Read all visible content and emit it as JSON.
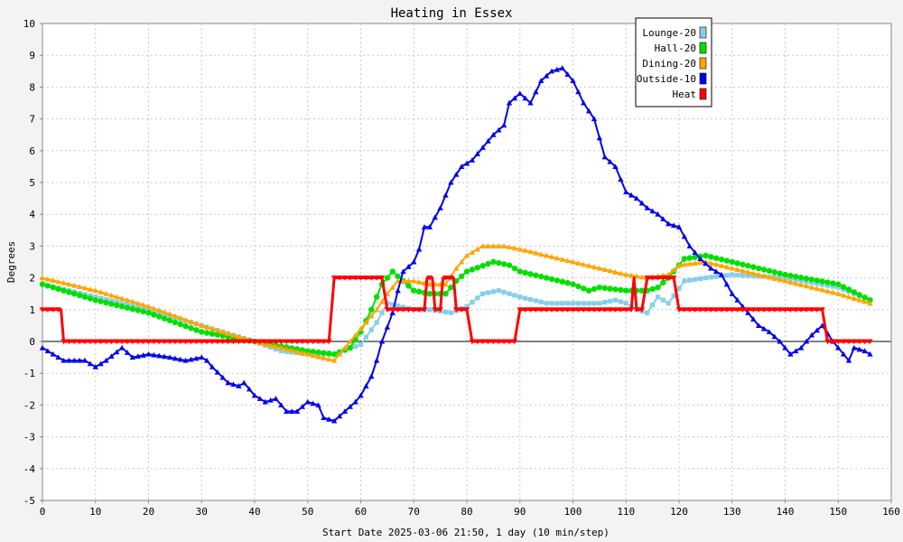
{
  "chart_data": {
    "type": "line",
    "title": "Heating in Essex",
    "xlabel": "Start Date 2025-03-06 21:50, 1 day (10 min/step)",
    "ylabel": "Degrees",
    "xlim": [
      0,
      160
    ],
    "ylim": [
      -5,
      10
    ],
    "x_ticks": [
      0,
      10,
      20,
      30,
      40,
      50,
      60,
      70,
      80,
      90,
      100,
      110,
      120,
      130,
      140,
      150,
      160
    ],
    "y_ticks": [
      -5,
      -4,
      -3,
      -2,
      -1,
      0,
      1,
      2,
      3,
      4,
      5,
      6,
      7,
      8,
      9,
      10
    ],
    "grid": true,
    "legend_position": "top-right",
    "background": "#f3f3f3",
    "series": [
      {
        "name": "Lounge-20",
        "color": "#87ceeb",
        "marker": "square",
        "points": [
          [
            0,
            1.8
          ],
          [
            10,
            1.4
          ],
          [
            20,
            1.0
          ],
          [
            30,
            0.5
          ],
          [
            40,
            0.0
          ],
          [
            45,
            -0.3
          ],
          [
            50,
            -0.4
          ],
          [
            55,
            -0.4
          ],
          [
            60,
            -0.1
          ],
          [
            63,
            0.6
          ],
          [
            65,
            1.2
          ],
          [
            70,
            1.0
          ],
          [
            73,
            1.0
          ],
          [
            77,
            0.9
          ],
          [
            80,
            1.1
          ],
          [
            83,
            1.5
          ],
          [
            86,
            1.6
          ],
          [
            90,
            1.4
          ],
          [
            95,
            1.2
          ],
          [
            100,
            1.2
          ],
          [
            105,
            1.2
          ],
          [
            108,
            1.3
          ],
          [
            110,
            1.2
          ],
          [
            112,
            1.0
          ],
          [
            114,
            0.9
          ],
          [
            116,
            1.4
          ],
          [
            118,
            1.2
          ],
          [
            121,
            1.9
          ],
          [
            125,
            2.0
          ],
          [
            130,
            2.1
          ],
          [
            140,
            2.0
          ],
          [
            150,
            1.7
          ],
          [
            156,
            1.3
          ]
        ]
      },
      {
        "name": "Hall-20",
        "color": "#00e000",
        "marker": "circle",
        "points": [
          [
            0,
            1.8
          ],
          [
            10,
            1.3
          ],
          [
            20,
            0.9
          ],
          [
            30,
            0.3
          ],
          [
            40,
            0.0
          ],
          [
            50,
            -0.3
          ],
          [
            55,
            -0.4
          ],
          [
            58,
            -0.2
          ],
          [
            60,
            0.3
          ],
          [
            62,
            1.0
          ],
          [
            64,
            1.8
          ],
          [
            66,
            2.2
          ],
          [
            68,
            1.9
          ],
          [
            70,
            1.6
          ],
          [
            73,
            1.5
          ],
          [
            76,
            1.5
          ],
          [
            78,
            1.9
          ],
          [
            80,
            2.2
          ],
          [
            85,
            2.5
          ],
          [
            88,
            2.4
          ],
          [
            90,
            2.2
          ],
          [
            95,
            2.0
          ],
          [
            100,
            1.8
          ],
          [
            103,
            1.6
          ],
          [
            105,
            1.7
          ],
          [
            110,
            1.6
          ],
          [
            114,
            1.6
          ],
          [
            116,
            1.7
          ],
          [
            118,
            2.0
          ],
          [
            121,
            2.6
          ],
          [
            125,
            2.7
          ],
          [
            130,
            2.5
          ],
          [
            140,
            2.1
          ],
          [
            150,
            1.8
          ],
          [
            156,
            1.3
          ]
        ]
      },
      {
        "name": "Dining-20",
        "color": "#ffa500",
        "marker": "triangle",
        "points": [
          [
            0,
            2.0
          ],
          [
            10,
            1.6
          ],
          [
            20,
            1.1
          ],
          [
            30,
            0.5
          ],
          [
            40,
            0.0
          ],
          [
            50,
            -0.4
          ],
          [
            55,
            -0.6
          ],
          [
            57,
            -0.2
          ],
          [
            60,
            0.4
          ],
          [
            63,
            1.0
          ],
          [
            65,
            1.5
          ],
          [
            67,
            1.9
          ],
          [
            70,
            1.9
          ],
          [
            73,
            1.8
          ],
          [
            76,
            1.8
          ],
          [
            78,
            2.3
          ],
          [
            80,
            2.7
          ],
          [
            83,
            3.0
          ],
          [
            87,
            3.0
          ],
          [
            90,
            2.9
          ],
          [
            95,
            2.7
          ],
          [
            100,
            2.5
          ],
          [
            105,
            2.3
          ],
          [
            110,
            2.1
          ],
          [
            114,
            2.0
          ],
          [
            118,
            2.1
          ],
          [
            120,
            2.4
          ],
          [
            125,
            2.5
          ],
          [
            130,
            2.3
          ],
          [
            140,
            1.9
          ],
          [
            150,
            1.5
          ],
          [
            156,
            1.2
          ]
        ]
      },
      {
        "name": "Outside-10",
        "color": "#0000ee",
        "marker": "triangle",
        "points": [
          [
            0,
            -0.2
          ],
          [
            2,
            -0.4
          ],
          [
            4,
            -0.6
          ],
          [
            8,
            -0.6
          ],
          [
            10,
            -0.8
          ],
          [
            12,
            -0.6
          ],
          [
            15,
            -0.2
          ],
          [
            17,
            -0.5
          ],
          [
            20,
            -0.4
          ],
          [
            24,
            -0.5
          ],
          [
            27,
            -0.6
          ],
          [
            30,
            -0.5
          ],
          [
            31,
            -0.6
          ],
          [
            32,
            -0.8
          ],
          [
            35,
            -1.3
          ],
          [
            37,
            -1.4
          ],
          [
            38,
            -1.3
          ],
          [
            40,
            -1.7
          ],
          [
            42,
            -1.9
          ],
          [
            44,
            -1.8
          ],
          [
            46,
            -2.2
          ],
          [
            48,
            -2.2
          ],
          [
            50,
            -1.9
          ],
          [
            52,
            -2.0
          ],
          [
            53,
            -2.4
          ],
          [
            55,
            -2.5
          ],
          [
            57,
            -2.2
          ],
          [
            59,
            -1.9
          ],
          [
            60,
            -1.7
          ],
          [
            62,
            -1.1
          ],
          [
            63,
            -0.6
          ],
          [
            64,
            0.0
          ],
          [
            66,
            0.9
          ],
          [
            67,
            1.6
          ],
          [
            68,
            2.2
          ],
          [
            70,
            2.5
          ],
          [
            71,
            2.9
          ],
          [
            72,
            3.6
          ],
          [
            73,
            3.6
          ],
          [
            75,
            4.2
          ],
          [
            77,
            5.0
          ],
          [
            79,
            5.5
          ],
          [
            81,
            5.7
          ],
          [
            83,
            6.1
          ],
          [
            85,
            6.5
          ],
          [
            87,
            6.8
          ],
          [
            88,
            7.5
          ],
          [
            90,
            7.8
          ],
          [
            92,
            7.5
          ],
          [
            94,
            8.2
          ],
          [
            96,
            8.5
          ],
          [
            98,
            8.6
          ],
          [
            100,
            8.2
          ],
          [
            102,
            7.5
          ],
          [
            104,
            7.0
          ],
          [
            106,
            5.8
          ],
          [
            108,
            5.5
          ],
          [
            110,
            4.7
          ],
          [
            112,
            4.5
          ],
          [
            114,
            4.2
          ],
          [
            116,
            4.0
          ],
          [
            118,
            3.7
          ],
          [
            120,
            3.6
          ],
          [
            122,
            3.0
          ],
          [
            124,
            2.6
          ],
          [
            126,
            2.3
          ],
          [
            128,
            2.1
          ],
          [
            130,
            1.5
          ],
          [
            133,
            0.9
          ],
          [
            135,
            0.5
          ],
          [
            137,
            0.3
          ],
          [
            139,
            0.0
          ],
          [
            141,
            -0.4
          ],
          [
            143,
            -0.2
          ],
          [
            145,
            0.2
          ],
          [
            147,
            0.5
          ],
          [
            149,
            0.0
          ],
          [
            150,
            -0.2
          ],
          [
            152,
            -0.6
          ],
          [
            153,
            -0.2
          ],
          [
            155,
            -0.3
          ],
          [
            156,
            -0.4
          ]
        ]
      },
      {
        "name": "Heat",
        "color": "#ff0000",
        "marker": "down-triangle",
        "points": [
          [
            0,
            1
          ],
          [
            3.5,
            1
          ],
          [
            4,
            0
          ],
          [
            54,
            0
          ],
          [
            55,
            2
          ],
          [
            64,
            2
          ],
          [
            65,
            1
          ],
          [
            72,
            1
          ],
          [
            72.5,
            2
          ],
          [
            73.5,
            2
          ],
          [
            74,
            1
          ],
          [
            75,
            1
          ],
          [
            75.5,
            2
          ],
          [
            77.5,
            2
          ],
          [
            78,
            1
          ],
          [
            80,
            1
          ],
          [
            81,
            0
          ],
          [
            89,
            0
          ],
          [
            90,
            1
          ],
          [
            111,
            1
          ],
          [
            111.5,
            2
          ],
          [
            112,
            1
          ],
          [
            113,
            1
          ],
          [
            114,
            2
          ],
          [
            119,
            2
          ],
          [
            120,
            1
          ],
          [
            147,
            1
          ],
          [
            148,
            0
          ],
          [
            156,
            0
          ]
        ]
      }
    ]
  }
}
